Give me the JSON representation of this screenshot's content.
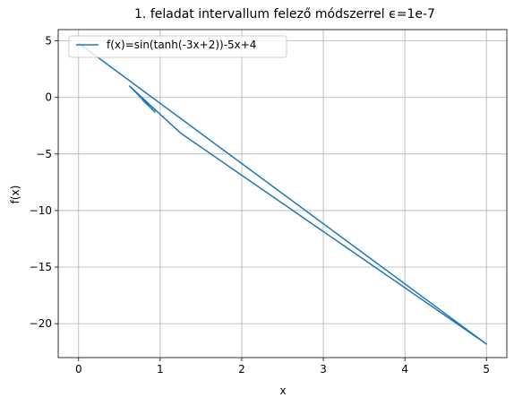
{
  "chart_data": {
    "type": "line",
    "title": "1. feladat intervallum felező módszerrel ϵ=1e-7",
    "xlabel": "x",
    "ylabel": "f(x)",
    "xlim": [
      -0.25,
      5.25
    ],
    "ylim": [
      -23.0,
      6.0
    ],
    "xticks": [
      0,
      1,
      2,
      3,
      4,
      5
    ],
    "yticks": [
      5,
      0,
      -5,
      -10,
      -15,
      -20
    ],
    "grid": true,
    "legend_position": "upper-left",
    "line_color": "#1f77b4",
    "series": [
      {
        "name": "f(x)=sin(tanh(-3x+2))-5x+4",
        "x": [
          0.0,
          5.0,
          1.25,
          0.625,
          0.9375,
          0.78125,
          0.859375,
          0.8984375,
          0.91796875,
          0.927734375,
          0.9326171875
        ],
        "y": [
          4.8,
          -21.8,
          -3.15,
          1.0,
          -1.3,
          -0.2,
          -0.75,
          -1.0,
          -1.15,
          -1.22,
          -1.25
        ]
      }
    ]
  }
}
